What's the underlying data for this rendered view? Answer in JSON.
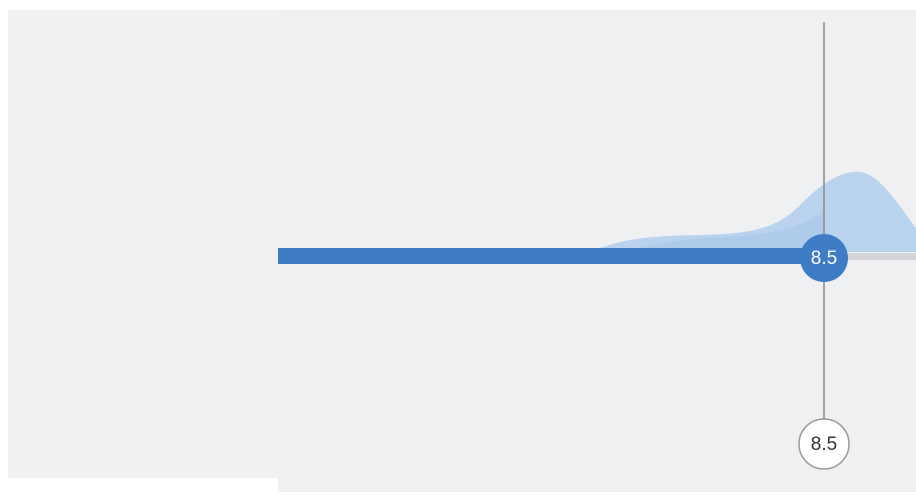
{
  "slider": {
    "handle_label": "8.5",
    "marker_label": "8.5"
  }
}
